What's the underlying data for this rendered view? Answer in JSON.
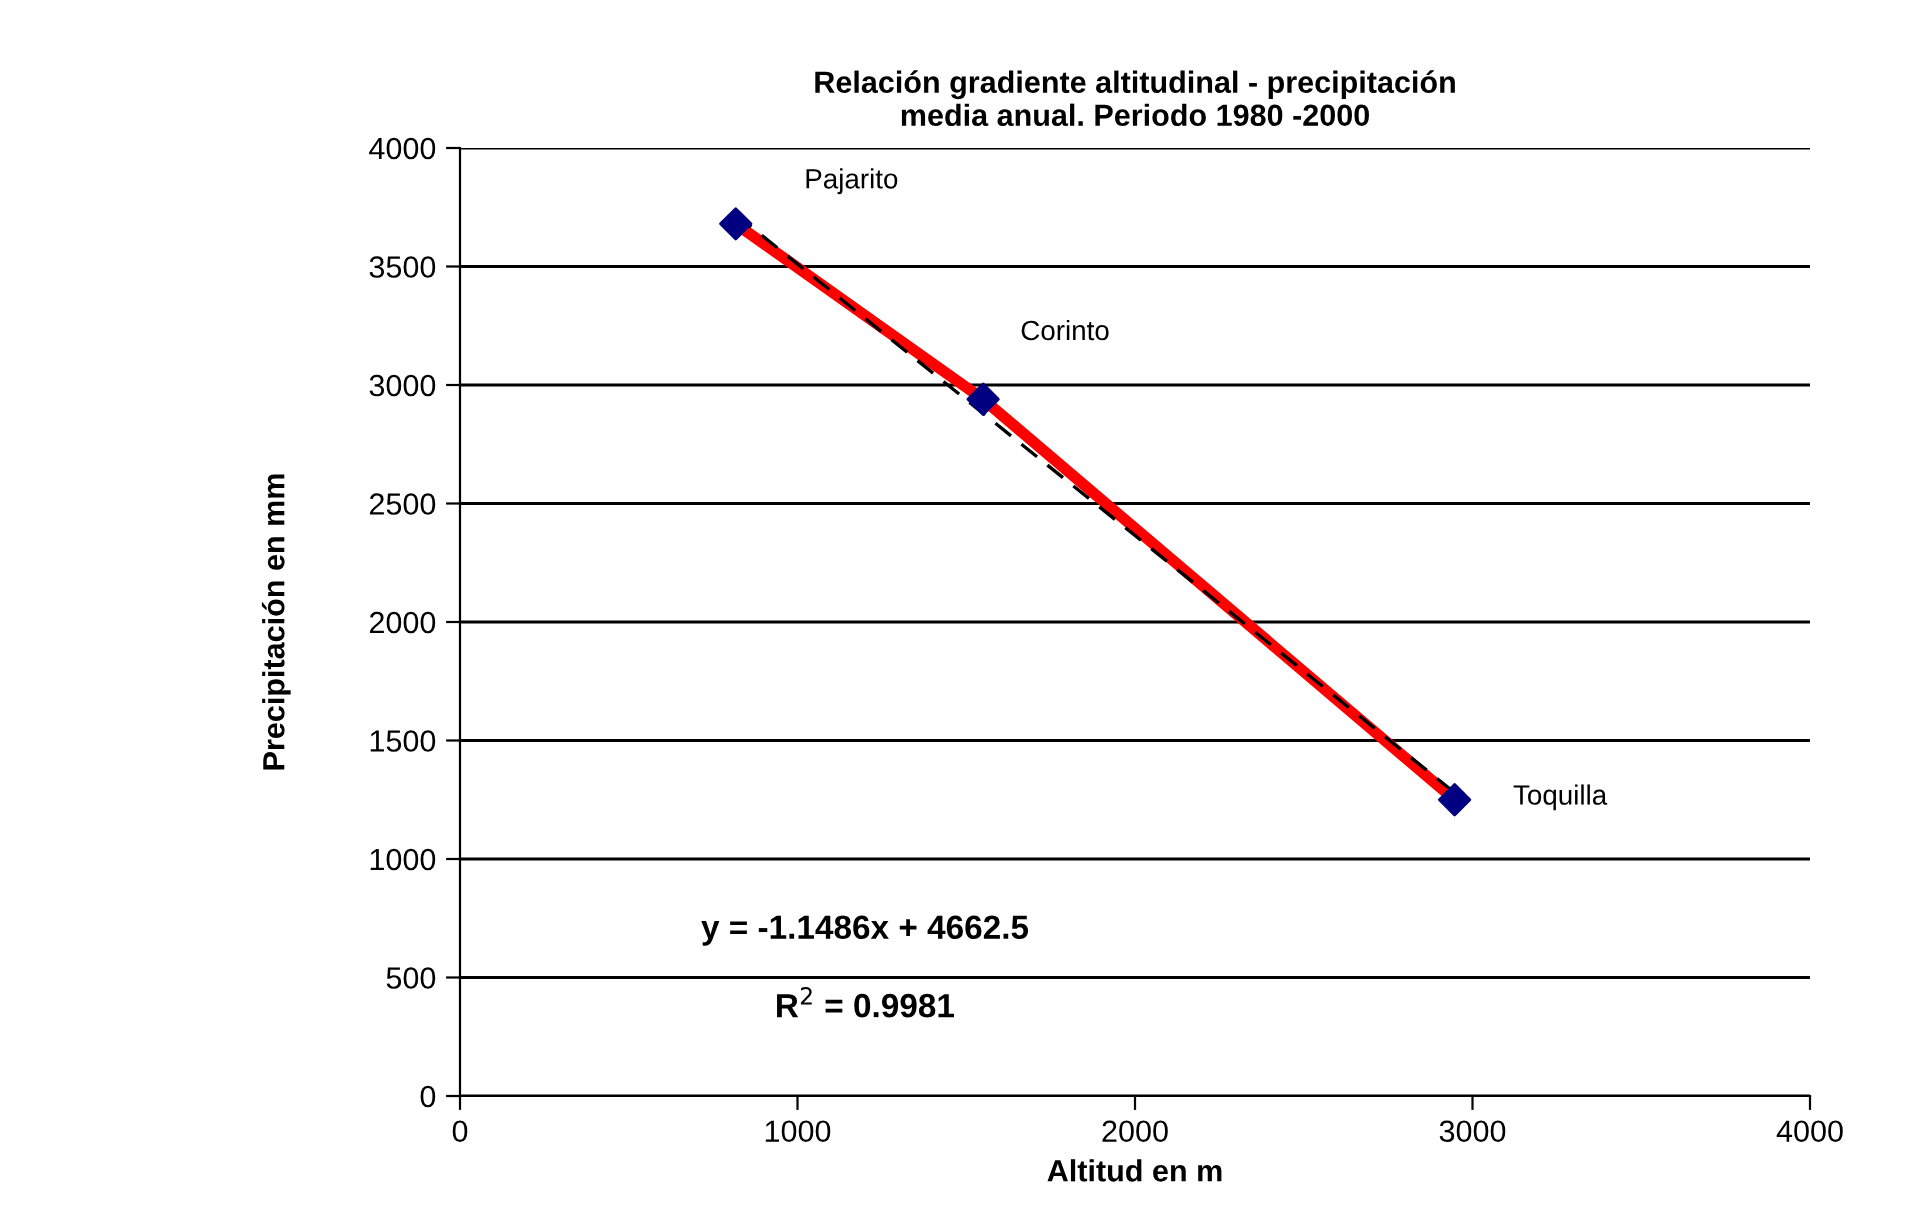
{
  "chart_data": {
    "type": "scatter",
    "title": "Relación gradiente altitudinal - precipitación\nmedia anual. Periodo 1980 -2000",
    "xlabel": "Altitud en m",
    "ylabel": "Precipitación en mm",
    "series": [
      {
        "type": "line",
        "color": "#ff0000",
        "x": [
          817,
          1550,
          2947
        ],
        "values": [
          3680,
          2940,
          1250
        ],
        "marker": "none",
        "line_style": "solid"
      },
      {
        "type": "line",
        "color": "#000000",
        "x": [
          817,
          2947
        ],
        "values": [
          3720,
          1280
        ],
        "marker": "none",
        "line_style": "dashed"
      },
      {
        "color": "#000080",
        "x": [
          817,
          1550,
          2947
        ],
        "values": [
          3680,
          2940,
          1250
        ],
        "marker": "diamond"
      }
    ],
    "annotations": [
      "Pajarito",
      "Corinto",
      "Toquilla",
      "y = -1.1486x + 4662.5",
      "R$^{2}$ = 0.9981"
    ],
    "xlim": [
      0,
      4000
    ],
    "xticks": [
      0,
      1000,
      2000,
      3000,
      4000
    ],
    "ylim": [
      0,
      4000
    ],
    "yticks": [
      0,
      500,
      1000,
      1500,
      2000,
      2500,
      3000,
      3500,
      4000
    ],
    "grid": "y"
  }
}
